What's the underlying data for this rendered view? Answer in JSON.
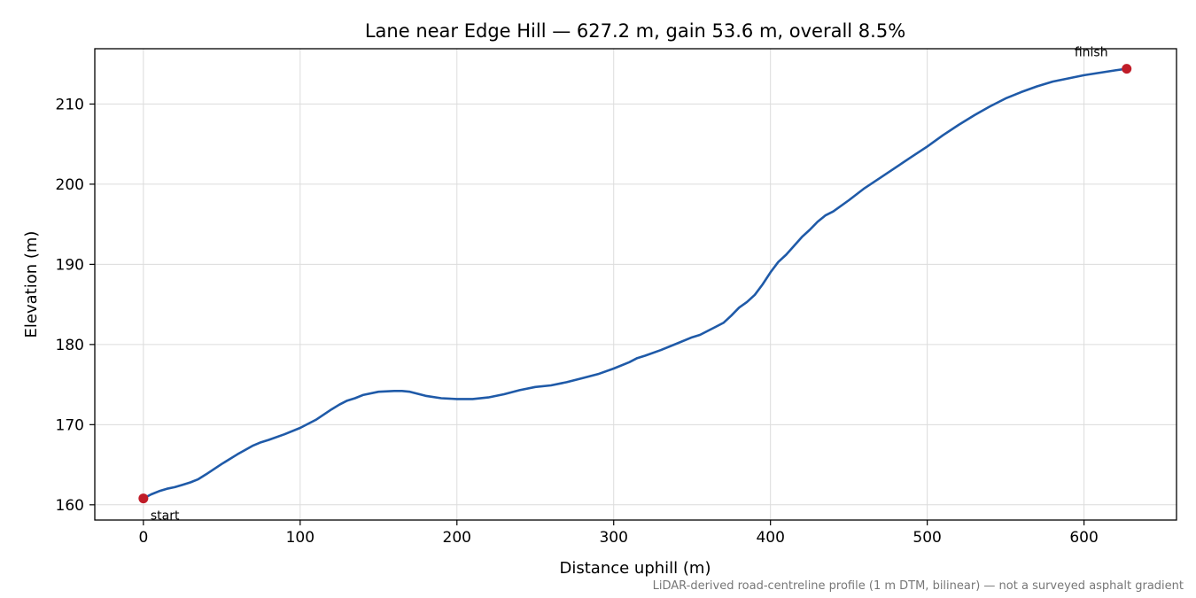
{
  "chart_data": {
    "type": "line",
    "title": "Lane near Edge Hill — 627.2 m, gain 53.6 m, overall 8.5%",
    "xlabel": "Distance uphill (m)",
    "ylabel": "Elevation (m)",
    "xlim": [
      -31,
      659
    ],
    "ylim": [
      158.1,
      216.9
    ],
    "xticks": [
      0,
      100,
      200,
      300,
      400,
      500,
      600
    ],
    "yticks": [
      160,
      170,
      180,
      190,
      200,
      210
    ],
    "grid": true,
    "line_color": "#1f5aa8",
    "marker_color": "#c01c28",
    "series": [
      {
        "x": [
          0,
          5,
          10,
          15,
          20,
          25,
          30,
          35,
          40,
          50,
          60,
          70,
          75,
          80,
          90,
          100,
          110,
          120,
          125,
          130,
          135,
          140,
          150,
          160,
          165,
          170,
          180,
          190,
          200,
          210,
          220,
          230,
          240,
          250,
          260,
          270,
          280,
          290,
          300,
          310,
          315,
          320,
          330,
          340,
          350,
          355,
          360,
          365,
          370,
          375,
          380,
          385,
          390,
          395,
          400,
          405,
          410,
          415,
          420,
          425,
          430,
          435,
          440,
          450,
          460,
          470,
          480,
          490,
          500,
          510,
          520,
          530,
          540,
          550,
          560,
          570,
          580,
          590,
          600,
          610,
          620,
          627.2
        ],
        "y": [
          160.8,
          161.3,
          161.7,
          162.0,
          162.2,
          162.5,
          162.8,
          163.2,
          163.8,
          165.1,
          166.3,
          167.4,
          167.8,
          168.1,
          168.8,
          169.6,
          170.6,
          171.9,
          172.5,
          173.0,
          173.3,
          173.7,
          174.1,
          174.2,
          174.2,
          174.1,
          173.6,
          173.3,
          173.2,
          173.2,
          173.4,
          173.8,
          174.3,
          174.7,
          174.9,
          175.3,
          175.8,
          176.3,
          177.0,
          177.8,
          178.3,
          178.6,
          179.3,
          180.1,
          180.9,
          181.2,
          181.7,
          182.2,
          182.7,
          183.6,
          184.6,
          185.3,
          186.2,
          187.5,
          189.0,
          190.3,
          191.2,
          192.3,
          193.4,
          194.3,
          195.3,
          196.1,
          196.6,
          198.0,
          199.5,
          200.8,
          202.1,
          203.4,
          204.7,
          206.1,
          207.4,
          208.6,
          209.7,
          210.7,
          211.5,
          212.2,
          212.8,
          213.2,
          213.6,
          213.9,
          214.2,
          214.4
        ]
      }
    ],
    "start_point": {
      "x": 0,
      "y": 160.8,
      "label": "start"
    },
    "finish_point": {
      "x": 627.2,
      "y": 214.4,
      "label": "finish"
    },
    "footnote": "LiDAR-derived road-centreline profile (1 m DTM, bilinear) — not a surveyed asphalt gradient"
  }
}
